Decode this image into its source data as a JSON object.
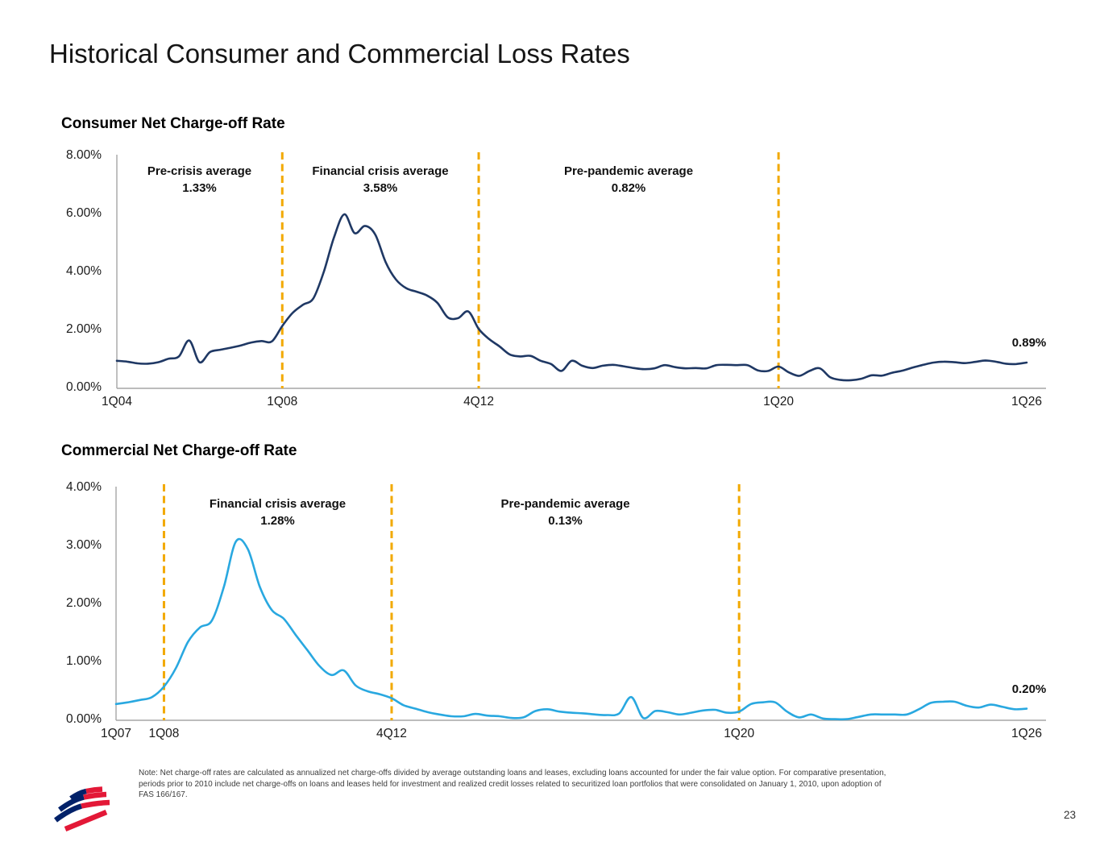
{
  "page": {
    "title": "Historical Consumer and Commercial Loss Rates",
    "page_number": "23",
    "footnote_lines": [
      "Note: Net charge-off rates are calculated as annualized net charge-offs divided by average outstanding loans and leases, excluding loans accounted for under the fair value option. For comparative presentation,",
      "periods prior to 2010 include net charge-offs on loans and leases held for investment and realized credit losses related to securitized loan portfolios that were consolidated on January 1, 2010, upon adoption of",
      "FAS 166/167."
    ],
    "logo": "bank-of-america-flag"
  },
  "colors": {
    "consumer_line": "#1F3864",
    "commercial_line": "#29A8E0",
    "divider": "#F2A900",
    "axis": "#A6A6A6",
    "logo_blue": "#012169",
    "logo_red": "#E31837"
  },
  "chart_data": [
    {
      "type": "line",
      "title": "Consumer Net Charge-off Rate",
      "unit": "percent",
      "x_frequency": "quarterly",
      "ylim": [
        0,
        8
      ],
      "grid": false,
      "y_ticks": [
        {
          "label": "8.00%",
          "value": 8
        },
        {
          "label": "6.00%",
          "value": 6
        },
        {
          "label": "4.00%",
          "value": 4
        },
        {
          "label": "2.00%",
          "value": 2
        },
        {
          "label": "0.00%",
          "value": 0
        }
      ],
      "x_ticks": [
        {
          "label": "1Q04",
          "q": 0
        },
        {
          "label": "1Q08",
          "q": 16
        },
        {
          "label": "4Q12",
          "q": 35
        },
        {
          "label": "1Q20",
          "q": 64
        },
        {
          "label": "1Q26",
          "q": 88
        }
      ],
      "dividers": [
        {
          "label": "1Q08",
          "q": 16
        },
        {
          "label": "4Q12",
          "q": 35
        },
        {
          "label": "1Q20",
          "q": 64
        }
      ],
      "annotations": [
        {
          "label": "Pre-crisis average",
          "value": "1.33%"
        },
        {
          "label": "Financial crisis average",
          "value": "3.58%"
        },
        {
          "label": "Pre-pandemic average",
          "value": "0.82%"
        }
      ],
      "end_label": "0.89%",
      "series": [
        {
          "name": "Consumer net charge-off rate (%)",
          "start": "1Q04",
          "end": "1Q26",
          "values": [
            0.95,
            0.92,
            0.86,
            0.85,
            0.9,
            1.02,
            1.1,
            1.65,
            0.9,
            1.25,
            1.33,
            1.4,
            1.48,
            1.58,
            1.63,
            1.62,
            2.15,
            2.6,
            2.88,
            3.1,
            4.0,
            5.2,
            6.0,
            5.35,
            5.6,
            5.3,
            4.35,
            3.75,
            3.45,
            3.33,
            3.2,
            2.95,
            2.45,
            2.42,
            2.65,
            2.05,
            1.7,
            1.45,
            1.17,
            1.1,
            1.12,
            0.95,
            0.84,
            0.6,
            0.95,
            0.78,
            0.7,
            0.78,
            0.81,
            0.76,
            0.7,
            0.66,
            0.69,
            0.8,
            0.73,
            0.69,
            0.7,
            0.69,
            0.8,
            0.81,
            0.8,
            0.8,
            0.62,
            0.6,
            0.75,
            0.55,
            0.43,
            0.6,
            0.69,
            0.38,
            0.29,
            0.28,
            0.33,
            0.45,
            0.44,
            0.54,
            0.61,
            0.72,
            0.81,
            0.89,
            0.92,
            0.9,
            0.87,
            0.91,
            0.96,
            0.92,
            0.85,
            0.84,
            0.89
          ]
        }
      ]
    },
    {
      "type": "line",
      "title": "Commercial Net Charge-off Rate",
      "unit": "percent",
      "x_frequency": "quarterly",
      "ylim": [
        0,
        4
      ],
      "grid": false,
      "y_ticks": [
        {
          "label": "4.00%",
          "value": 4
        },
        {
          "label": "3.00%",
          "value": 3
        },
        {
          "label": "2.00%",
          "value": 2
        },
        {
          "label": "1.00%",
          "value": 1
        },
        {
          "label": "0.00%",
          "value": 0
        }
      ],
      "x_ticks": [
        {
          "label": "1Q07",
          "q": 0
        },
        {
          "label": "1Q08",
          "q": 4
        },
        {
          "label": "4Q12",
          "q": 23
        },
        {
          "label": "1Q20",
          "q": 52
        },
        {
          "label": "1Q26",
          "q": 76
        }
      ],
      "dividers": [
        {
          "label": "1Q08",
          "q": 4
        },
        {
          "label": "4Q12",
          "q": 23
        },
        {
          "label": "1Q20",
          "q": 52
        }
      ],
      "annotations": [
        {
          "label": "Financial crisis average",
          "value": "1.28%"
        },
        {
          "label": "Pre-pandemic average",
          "value": "0.13%"
        }
      ],
      "end_label": "0.20%",
      "series": [
        {
          "name": "Commercial net charge-off rate (%)",
          "start": "1Q07",
          "end": "1Q26",
          "values": [
            0.28,
            0.31,
            0.35,
            0.4,
            0.58,
            0.9,
            1.35,
            1.6,
            1.72,
            2.3,
            3.08,
            2.95,
            2.3,
            1.9,
            1.75,
            1.47,
            1.2,
            0.93,
            0.78,
            0.86,
            0.6,
            0.5,
            0.45,
            0.38,
            0.26,
            0.2,
            0.14,
            0.1,
            0.07,
            0.07,
            0.11,
            0.08,
            0.07,
            0.04,
            0.05,
            0.16,
            0.19,
            0.15,
            0.13,
            0.12,
            0.1,
            0.09,
            0.12,
            0.4,
            0.04,
            0.16,
            0.14,
            0.1,
            0.13,
            0.17,
            0.18,
            0.13,
            0.15,
            0.28,
            0.31,
            0.31,
            0.15,
            0.05,
            0.1,
            0.03,
            0.02,
            0.02,
            0.06,
            0.1,
            0.1,
            0.1,
            0.1,
            0.19,
            0.3,
            0.32,
            0.32,
            0.25,
            0.22,
            0.27,
            0.23,
            0.19,
            0.2
          ]
        }
      ]
    }
  ]
}
